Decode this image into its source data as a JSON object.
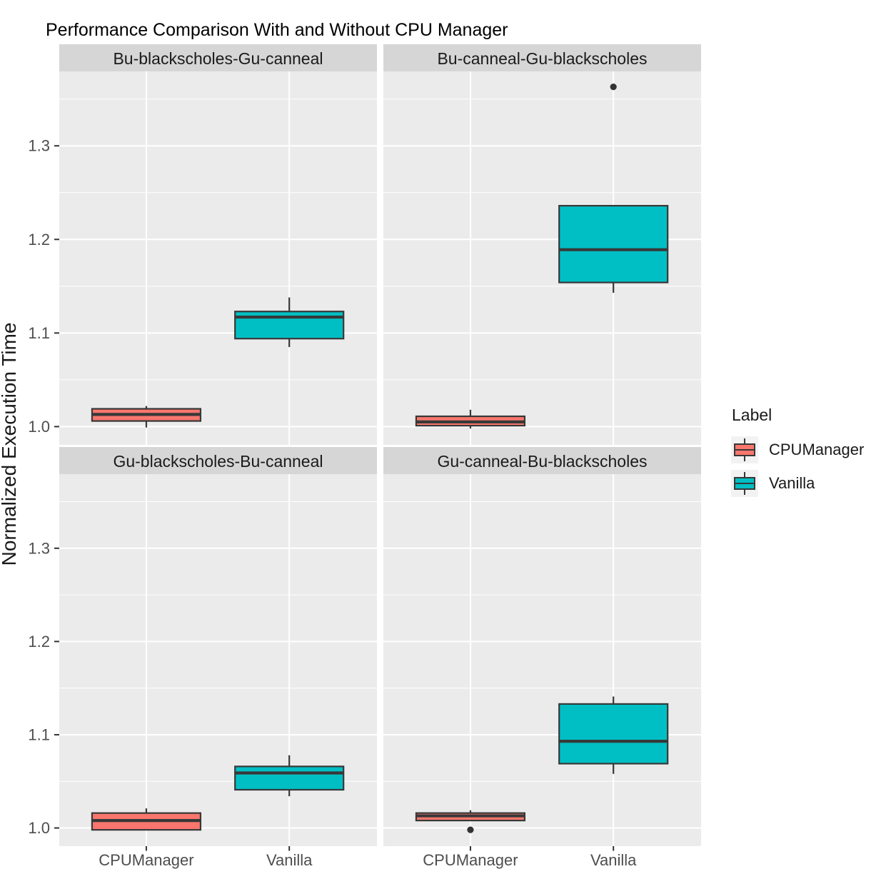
{
  "title": "Performance Comparison With and Without CPU Manager",
  "chart_data": {
    "type": "boxplot",
    "title": "Performance Comparison With and Without CPU Manager",
    "xlabel": "",
    "ylabel": "Normalized Execution Time",
    "x_categories": [
      "CPUManager",
      "Vanilla"
    ],
    "y_ticks": [
      1.0,
      1.1,
      1.2,
      1.3
    ],
    "y_tick_labels": [
      "1.0",
      "1.1",
      "1.2",
      "1.3"
    ],
    "y_minor_ticks": [
      1.05,
      1.15,
      1.25,
      1.35
    ],
    "ylim": [
      0.9805,
      1.3795
    ],
    "grid": true,
    "legend": {
      "title": "Label",
      "position": "right",
      "entries": [
        {
          "label": "CPUManager",
          "color": "#F8766D"
        },
        {
          "label": "Vanilla",
          "color": "#00BFC4"
        }
      ]
    },
    "facets": [
      {
        "label": "Bu-blackscholes-Gu-canneal",
        "boxes": [
          {
            "group": "CPUManager",
            "color": "#F8766D",
            "whisker_low": 0.999,
            "q1": 1.006,
            "median": 1.013,
            "q3": 1.019,
            "whisker_high": 1.022,
            "outliers": []
          },
          {
            "group": "Vanilla",
            "color": "#00BFC4",
            "whisker_low": 1.085,
            "q1": 1.094,
            "median": 1.117,
            "q3": 1.123,
            "whisker_high": 1.138,
            "outliers": []
          }
        ]
      },
      {
        "label": "Bu-canneal-Gu-blackscholes",
        "boxes": [
          {
            "group": "CPUManager",
            "color": "#F8766D",
            "whisker_low": 0.998,
            "q1": 1.001,
            "median": 1.005,
            "q3": 1.011,
            "whisker_high": 1.018,
            "outliers": []
          },
          {
            "group": "Vanilla",
            "color": "#00BFC4",
            "whisker_low": 1.143,
            "q1": 1.154,
            "median": 1.189,
            "q3": 1.236,
            "whisker_high": 1.236,
            "outliers": [
              1.363
            ]
          }
        ]
      },
      {
        "label": "Gu-blackscholes-Bu-canneal",
        "boxes": [
          {
            "group": "CPUManager",
            "color": "#F8766D",
            "whisker_low": 0.998,
            "q1": 0.998,
            "median": 1.008,
            "q3": 1.016,
            "whisker_high": 1.021,
            "outliers": []
          },
          {
            "group": "Vanilla",
            "color": "#00BFC4",
            "whisker_low": 1.034,
            "q1": 1.041,
            "median": 1.059,
            "q3": 1.066,
            "whisker_high": 1.078,
            "outliers": []
          }
        ]
      },
      {
        "label": "Gu-canneal-Bu-blackscholes",
        "boxes": [
          {
            "group": "CPUManager",
            "color": "#F8766D",
            "whisker_low": 1.008,
            "q1": 1.008,
            "median": 1.013,
            "q3": 1.016,
            "whisker_high": 1.019,
            "outliers": [
              0.998
            ]
          },
          {
            "group": "Vanilla",
            "color": "#00BFC4",
            "whisker_low": 1.058,
            "q1": 1.069,
            "median": 1.093,
            "q3": 1.133,
            "whisker_high": 1.141,
            "outliers": []
          }
        ]
      }
    ],
    "colors": {
      "panel_bg": "#EBEBEB",
      "strip_bg": "#D6D6D6",
      "grid": "#FFFFFF",
      "box_border": "#383838",
      "median": "#383838",
      "outlier": "#333333",
      "tick_mark": "#333333",
      "tick_label": "#4D4D4D",
      "strip_text": "#1A1A1A",
      "axis_title": "#1A1A1A",
      "title": "#000000",
      "legend_key_bg": "#F2F2F2"
    }
  }
}
